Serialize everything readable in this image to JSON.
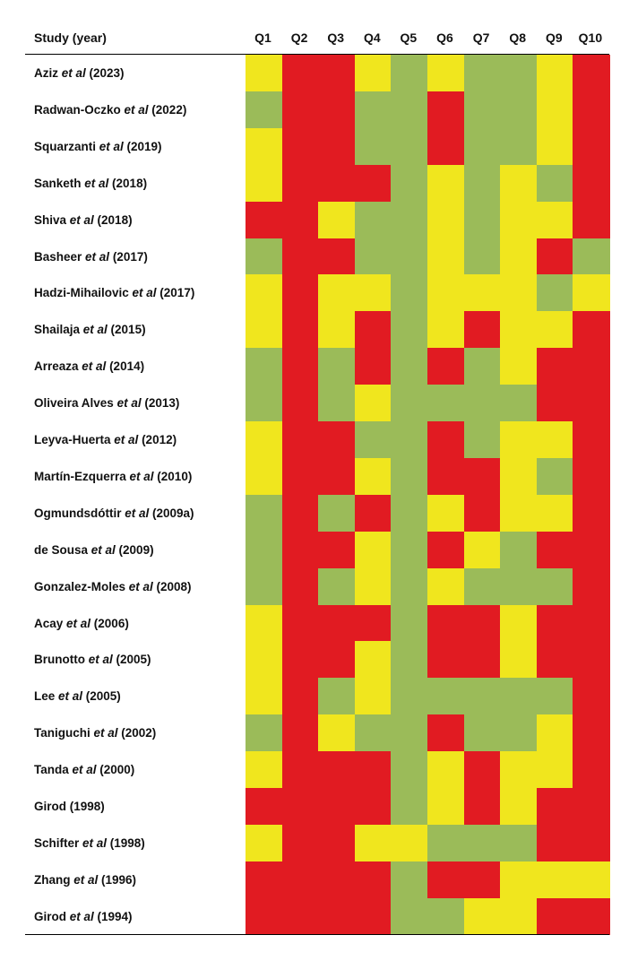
{
  "chart_data": {
    "type": "heatmap",
    "title": "",
    "header_label": "Study (year)",
    "columns": [
      "Q1",
      "Q2",
      "Q3",
      "Q4",
      "Q5",
      "Q6",
      "Q7",
      "Q8",
      "Q9",
      "Q10"
    ],
    "rating_colors": {
      "G": "#9bbb59",
      "Y": "#f0e61e",
      "R": "#e11b22"
    },
    "rows": [
      {
        "pre": "Aziz ",
        "etal": "et al",
        "post": " (2023)",
        "ratings": [
          "Y",
          "R",
          "R",
          "Y",
          "G",
          "Y",
          "G",
          "G",
          "Y",
          "R"
        ]
      },
      {
        "pre": "Radwan-Oczko ",
        "etal": "et al",
        "post": " (2022)",
        "ratings": [
          "G",
          "R",
          "R",
          "G",
          "G",
          "R",
          "G",
          "G",
          "Y",
          "R"
        ]
      },
      {
        "pre": "Squarzanti ",
        "etal": "et al",
        "post": " (2019)",
        "ratings": [
          "Y",
          "R",
          "R",
          "G",
          "G",
          "R",
          "G",
          "G",
          "Y",
          "R"
        ]
      },
      {
        "pre": "Sanketh ",
        "etal": "et al",
        "post": " (2018)",
        "ratings": [
          "Y",
          "R",
          "R",
          "R",
          "G",
          "Y",
          "G",
          "Y",
          "G",
          "R"
        ]
      },
      {
        "pre": "Shiva ",
        "etal": "et al",
        "post": " (2018)",
        "ratings": [
          "R",
          "R",
          "Y",
          "G",
          "G",
          "Y",
          "G",
          "Y",
          "Y",
          "R"
        ]
      },
      {
        "pre": "Basheer ",
        "etal": "et al",
        "post": " (2017)",
        "ratings": [
          "G",
          "R",
          "R",
          "G",
          "G",
          "Y",
          "G",
          "Y",
          "R",
          "G"
        ]
      },
      {
        "pre": "Hadzi-Mihailovic ",
        "etal": "et al",
        "post": " (2017)",
        "ratings": [
          "Y",
          "R",
          "Y",
          "Y",
          "G",
          "Y",
          "Y",
          "Y",
          "G",
          "Y"
        ]
      },
      {
        "pre": "Shailaja ",
        "etal": "et al",
        "post": " (2015)",
        "ratings": [
          "Y",
          "R",
          "Y",
          "R",
          "G",
          "Y",
          "R",
          "Y",
          "Y",
          "R"
        ]
      },
      {
        "pre": "Arreaza ",
        "etal": "et al",
        "post": " (2014)",
        "ratings": [
          "G",
          "R",
          "G",
          "R",
          "G",
          "R",
          "G",
          "Y",
          "R",
          "R"
        ]
      },
      {
        "pre": "Oliveira Alves ",
        "etal": "et al",
        "post": " (2013)",
        "ratings": [
          "G",
          "R",
          "G",
          "Y",
          "G",
          "G",
          "G",
          "G",
          "R",
          "R"
        ]
      },
      {
        "pre": "Leyva-Huerta ",
        "etal": "et al",
        "post": " (2012)",
        "ratings": [
          "Y",
          "R",
          "R",
          "G",
          "G",
          "R",
          "G",
          "Y",
          "Y",
          "R"
        ]
      },
      {
        "pre": "Martín-Ezquerra ",
        "etal": "et al",
        "post": " (2010)",
        "ratings": [
          "Y",
          "R",
          "R",
          "Y",
          "G",
          "R",
          "R",
          "Y",
          "G",
          "R"
        ]
      },
      {
        "pre": "Ogmundsdóttir ",
        "etal": "et al",
        "post": " (2009a)",
        "ratings": [
          "G",
          "R",
          "G",
          "R",
          "G",
          "Y",
          "R",
          "Y",
          "Y",
          "R"
        ]
      },
      {
        "pre": "de Sousa ",
        "etal": "et al",
        "post": " (2009)",
        "ratings": [
          "G",
          "R",
          "R",
          "Y",
          "G",
          "R",
          "Y",
          "G",
          "R",
          "R"
        ]
      },
      {
        "pre": "Gonzalez-Moles ",
        "etal": "et al",
        "post": " (2008)",
        "ratings": [
          "G",
          "R",
          "G",
          "Y",
          "G",
          "Y",
          "G",
          "G",
          "G",
          "R"
        ]
      },
      {
        "pre": "Acay ",
        "etal": "et al",
        "post": " (2006)",
        "ratings": [
          "Y",
          "R",
          "R",
          "R",
          "G",
          "R",
          "R",
          "Y",
          "R",
          "R"
        ]
      },
      {
        "pre": "Brunotto ",
        "etal": "et al",
        "post": " (2005)",
        "ratings": [
          "Y",
          "R",
          "R",
          "Y",
          "G",
          "R",
          "R",
          "Y",
          "R",
          "R"
        ]
      },
      {
        "pre": "Lee ",
        "etal": "et al",
        "post": " (2005)",
        "ratings": [
          "Y",
          "R",
          "G",
          "Y",
          "G",
          "G",
          "G",
          "G",
          "G",
          "R"
        ]
      },
      {
        "pre": "Taniguchi ",
        "etal": "et al",
        "post": " (2002)",
        "ratings": [
          "G",
          "R",
          "Y",
          "G",
          "G",
          "R",
          "G",
          "G",
          "Y",
          "R"
        ]
      },
      {
        "pre": "Tanda ",
        "etal": "et al",
        "post": " (2000)",
        "ratings": [
          "Y",
          "R",
          "R",
          "R",
          "G",
          "Y",
          "R",
          "Y",
          "Y",
          "R"
        ]
      },
      {
        "pre": "Girod (1998)",
        "etal": "",
        "post": "",
        "ratings": [
          "R",
          "R",
          "R",
          "R",
          "G",
          "Y",
          "R",
          "Y",
          "R",
          "R"
        ]
      },
      {
        "pre": "Schifter ",
        "etal": "et al",
        "post": " (1998)",
        "ratings": [
          "Y",
          "R",
          "R",
          "Y",
          "Y",
          "G",
          "G",
          "G",
          "R",
          "R"
        ]
      },
      {
        "pre": "Zhang ",
        "etal": "et al",
        "post": " (1996)",
        "ratings": [
          "R",
          "R",
          "R",
          "R",
          "G",
          "R",
          "R",
          "Y",
          "Y",
          "Y"
        ]
      },
      {
        "pre": "Girod ",
        "etal": "et al",
        "post": " (1994)",
        "ratings": [
          "R",
          "R",
          "R",
          "R",
          "G",
          "G",
          "Y",
          "Y",
          "R",
          "R"
        ]
      }
    ]
  }
}
